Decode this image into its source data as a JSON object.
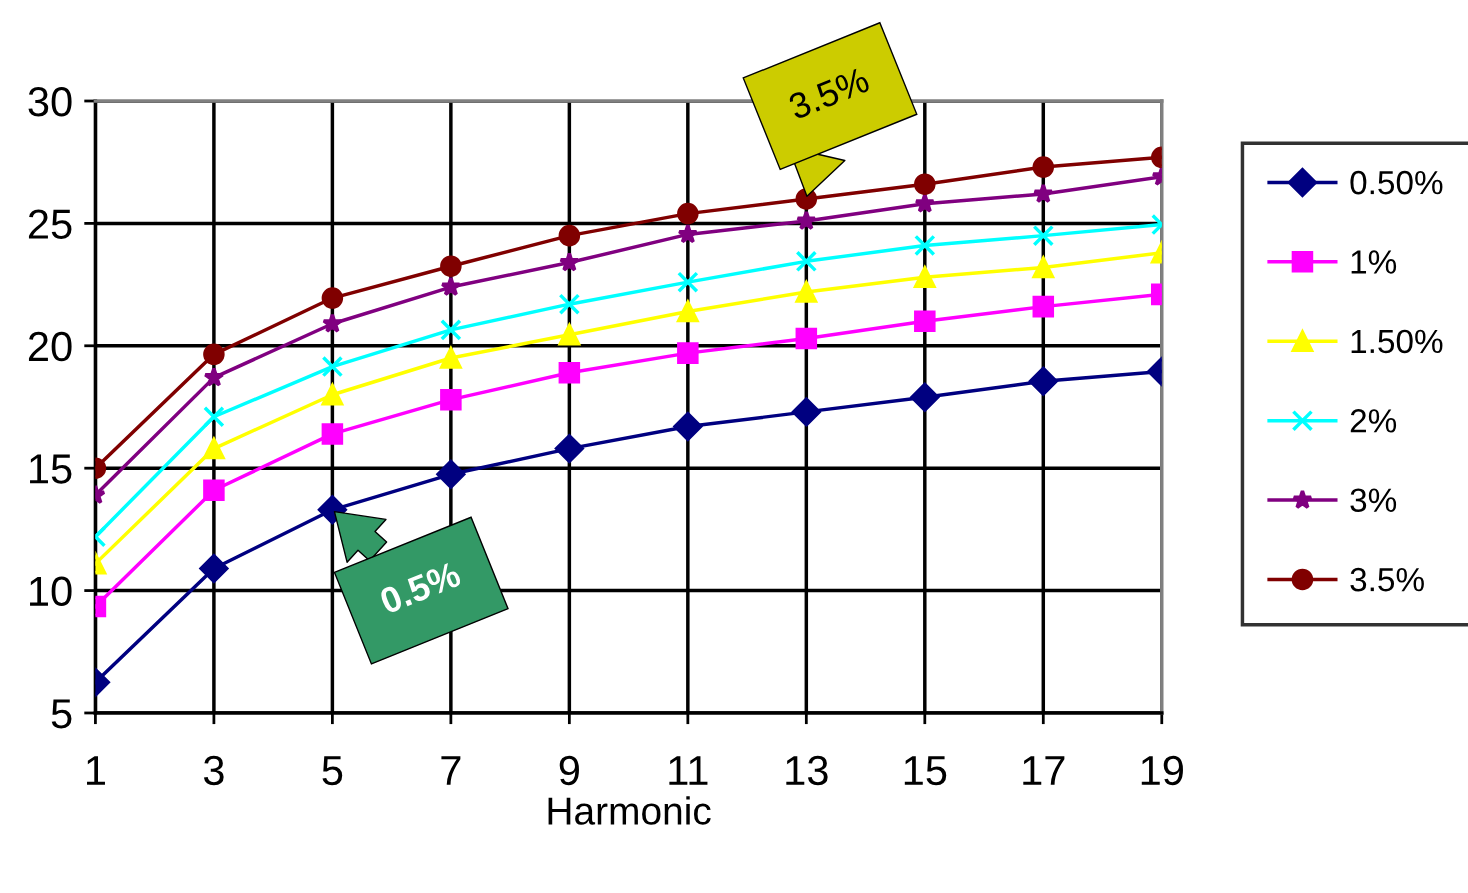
{
  "chart_data": {
    "type": "line",
    "xlabel": "Harmonic",
    "x": [
      1,
      3,
      5,
      7,
      9,
      11,
      13,
      15,
      17,
      19
    ],
    "xlim": [
      1,
      19
    ],
    "xticks": [
      1,
      3,
      5,
      7,
      9,
      11,
      13,
      15,
      17,
      19
    ],
    "ylim": [
      5,
      30
    ],
    "yticks": [
      5,
      10,
      15,
      20,
      25,
      30
    ],
    "grid": true,
    "legend": "right",
    "line_style": "solid",
    "series": [
      {
        "name": "0.50%",
        "color": "#000080",
        "marker": "diamond",
        "values": [
          6.25,
          10.9,
          13.3,
          14.75,
          15.8,
          16.7,
          17.3,
          17.9,
          18.55,
          18.95
        ]
      },
      {
        "name": "1%",
        "color": "#ff00ff",
        "marker": "square",
        "values": [
          9.35,
          14.1,
          16.4,
          17.8,
          18.9,
          19.7,
          20.3,
          21.0,
          21.6,
          22.1
        ]
      },
      {
        "name": "1.50%",
        "color": "#ffff00",
        "marker": "triangle",
        "values": [
          11.1,
          15.8,
          18.0,
          19.5,
          20.45,
          21.4,
          22.2,
          22.8,
          23.2,
          23.8
        ]
      },
      {
        "name": "2%",
        "color": "#00ffff",
        "marker": "cross",
        "values": [
          12.2,
          17.1,
          19.15,
          20.65,
          21.7,
          22.6,
          23.45,
          24.1,
          24.5,
          24.95
        ]
      },
      {
        "name": "3%",
        "color": "#800080",
        "marker": "star",
        "values": [
          13.9,
          18.7,
          20.9,
          22.4,
          23.4,
          24.55,
          25.1,
          25.8,
          26.2,
          26.9
        ]
      },
      {
        "name": "3.5%",
        "color": "#800000",
        "marker": "circle",
        "values": [
          15.0,
          19.65,
          21.95,
          23.25,
          24.5,
          25.4,
          26.0,
          26.6,
          27.3,
          27.7
        ]
      }
    ],
    "annotations": [
      {
        "text": "3.5%",
        "x": 13,
        "y": 26
      },
      {
        "text": "0.5%",
        "x": 5,
        "y": 13.3
      }
    ]
  }
}
